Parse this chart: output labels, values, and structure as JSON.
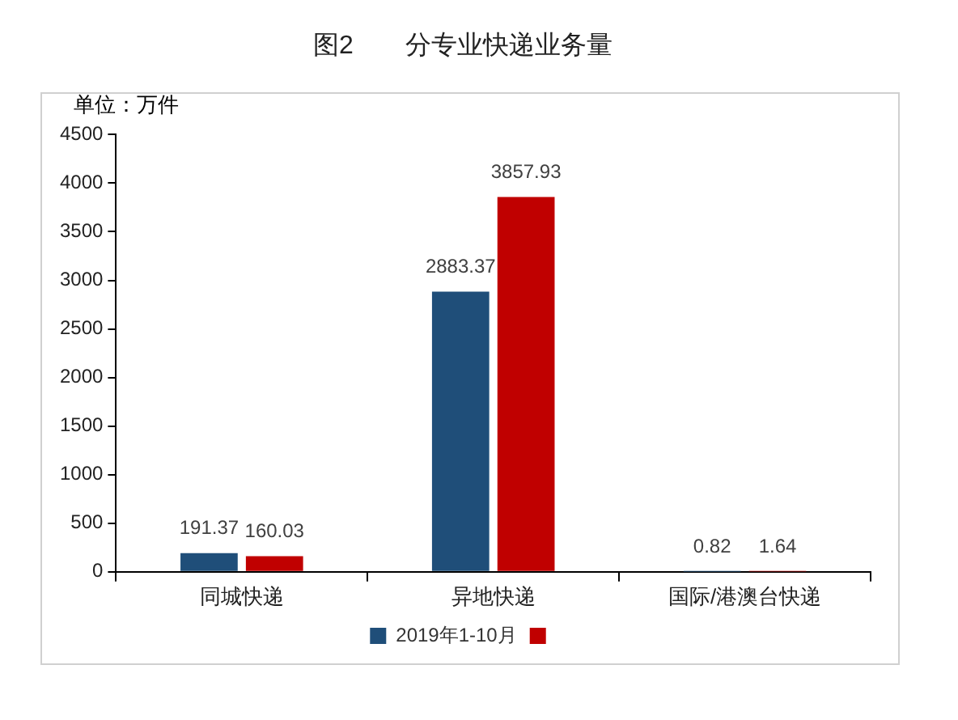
{
  "chart_data": {
    "type": "bar",
    "title": "图2　　分专业快递业务量",
    "ylabel": "单位：万件",
    "categories": [
      "同城快递",
      "异地快递",
      "国际/港澳台快递"
    ],
    "series": [
      {
        "name": "2019年1-10月",
        "color": "#1f4e79",
        "values": [
          191.37,
          2883.37,
          0.82
        ]
      },
      {
        "color": "#c00000",
        "values": [
          160.03,
          3857.93,
          1.64
        ]
      }
    ],
    "ylim": [
      0,
      4500
    ],
    "yticks": [
      0,
      500,
      1000,
      1500,
      2000,
      2500,
      3000,
      3500,
      4000,
      4500
    ],
    "grid": false,
    "legend": "bottom",
    "data_labels": true
  }
}
